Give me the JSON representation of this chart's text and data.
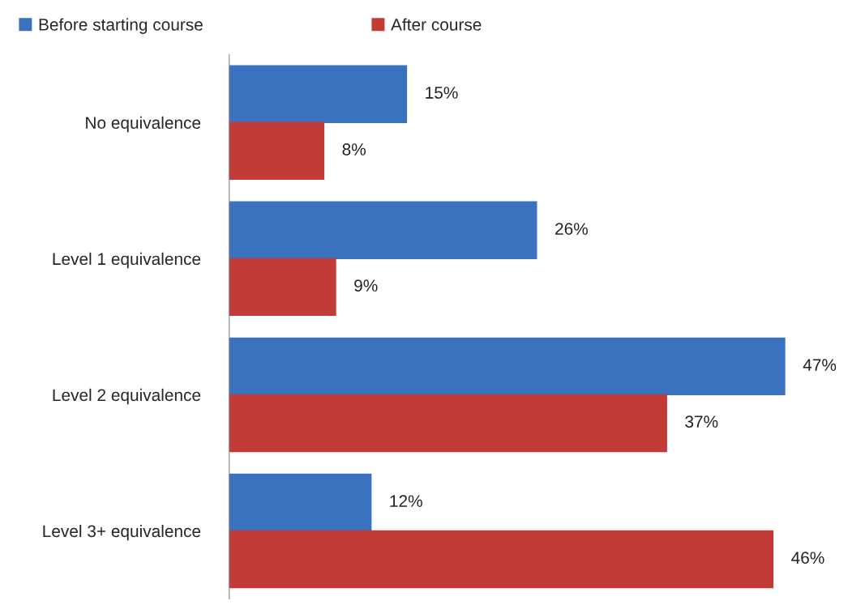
{
  "chart_data": {
    "type": "bar",
    "orientation": "horizontal",
    "categories": [
      "No equivalence",
      "Level 1 equivalence",
      "Level 2 equivalence",
      "Level 3+ equivalence"
    ],
    "series": [
      {
        "name": "Before starting course",
        "color": "#3a72bf",
        "values": [
          15,
          26,
          47,
          12
        ],
        "value_labels": [
          "15%",
          "26%",
          "47%",
          "12%"
        ]
      },
      {
        "name": "After course",
        "color": "#c23b37",
        "values": [
          8,
          9,
          37,
          46
        ],
        "value_labels": [
          "8%",
          "9%",
          "37%",
          "46%"
        ]
      }
    ],
    "legend": "top left",
    "grid": false,
    "tick_labels": "y"
  }
}
